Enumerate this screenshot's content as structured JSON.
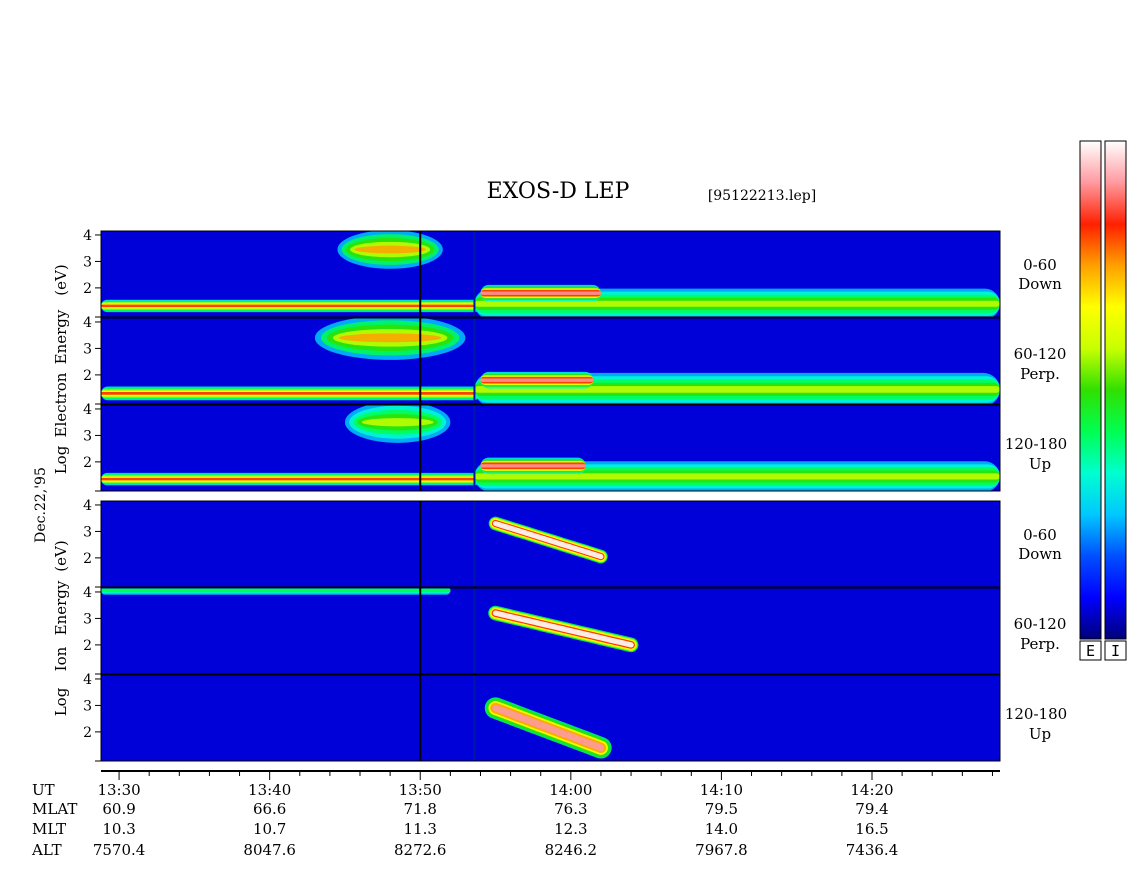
{
  "title": "EXOS-D LEP",
  "file_label": "[95122213.lep]",
  "date_label": "Dec.22,'95",
  "electron_axis_label": [
    "Log",
    "Electron",
    "Energy",
    "(eV)"
  ],
  "ion_axis_label": [
    "Log",
    "Ion",
    "Energy",
    "(eV)"
  ],
  "pitch_angle_labels": [
    [
      "0-60",
      "Down"
    ],
    [
      "60-120",
      "Perp."
    ],
    [
      "120-180",
      "Up"
    ]
  ],
  "colorbar_labels": [
    "E",
    "I"
  ],
  "colors": {
    "background": "#0000d8",
    "colorscale": [
      "#00007a",
      "#0000ff",
      "#0050ff",
      "#00c8ff",
      "#00ffd0",
      "#00ff50",
      "#30e000",
      "#c8ff00",
      "#ffff00",
      "#ffa000",
      "#ff2000",
      "#ff9aa0",
      "#ffffff"
    ]
  },
  "ephemeris": {
    "row_labels": [
      "UT",
      "MLAT",
      "MLT",
      "ALT"
    ],
    "columns": [
      {
        "UT": "13:30",
        "MLAT": "60.9",
        "MLT": "10.3",
        "ALT": "7570.4"
      },
      {
        "UT": "13:40",
        "MLAT": "66.6",
        "MLT": "10.7",
        "ALT": "8047.6"
      },
      {
        "UT": "13:50",
        "MLAT": "71.8",
        "MLT": "11.3",
        "ALT": "8272.6"
      },
      {
        "UT": "14:00",
        "MLAT": "76.3",
        "MLT": "12.3",
        "ALT": "8246.2"
      },
      {
        "UT": "14:10",
        "MLAT": "79.5",
        "MLT": "14.0",
        "ALT": "7967.8"
      },
      {
        "UT": "14:20",
        "MLAT": "79.4",
        "MLT": "16.5",
        "ALT": "7436.4"
      }
    ]
  },
  "chart_data": {
    "type": "heatmap",
    "x_axis": {
      "unit": "UT minutes after 13:00",
      "range": [
        28.8,
        88.5
      ],
      "major_ticks": [
        30,
        40,
        50,
        60,
        70,
        80
      ],
      "minor_step": 2
    },
    "y_axis": {
      "scale": "log10 energy (eV)",
      "range": [
        0.9,
        4.15
      ],
      "ticks": [
        2,
        3,
        4
      ]
    },
    "data_gap": {
      "start": 50.0,
      "end": 53.6
    },
    "panels": [
      {
        "species": "electron",
        "pitch": "0-60 Down",
        "features": [
          {
            "kind": "band",
            "x": [
              28.8,
              54.0
            ],
            "y": 1.32,
            "sigma": 0.09,
            "intensity": 0.82
          },
          {
            "kind": "blob",
            "x": [
              44.5,
              51.5
            ],
            "y": 3.45,
            "sigma": 0.28,
            "intensity": 0.72
          },
          {
            "kind": "band",
            "x": [
              53.6,
              88.5
            ],
            "y": 1.4,
            "sigma": 0.22,
            "intensity": 0.6
          },
          {
            "kind": "band",
            "x": [
              54.0,
              62.0
            ],
            "y": 1.8,
            "sigma": 0.12,
            "intensity": 0.95
          }
        ]
      },
      {
        "species": "electron",
        "pitch": "60-120 Perp.",
        "features": [
          {
            "kind": "band",
            "x": [
              28.8,
              54.0
            ],
            "y": 1.3,
            "sigma": 0.1,
            "intensity": 0.82
          },
          {
            "kind": "blob",
            "x": [
              43.0,
              53.0
            ],
            "y": 3.4,
            "sigma": 0.32,
            "intensity": 0.72
          },
          {
            "kind": "band",
            "x": [
              53.6,
              88.5
            ],
            "y": 1.45,
            "sigma": 0.24,
            "intensity": 0.6
          },
          {
            "kind": "band",
            "x": [
              54.0,
              61.5
            ],
            "y": 1.8,
            "sigma": 0.12,
            "intensity": 0.95
          }
        ]
      },
      {
        "species": "electron",
        "pitch": "120-180 Up",
        "features": [
          {
            "kind": "band",
            "x": [
              28.8,
              54.0
            ],
            "y": 1.35,
            "sigma": 0.09,
            "intensity": 0.8
          },
          {
            "kind": "blob",
            "x": [
              45.0,
              52.0
            ],
            "y": 3.5,
            "sigma": 0.3,
            "intensity": 0.62
          },
          {
            "kind": "band",
            "x": [
              53.6,
              88.5
            ],
            "y": 1.45,
            "sigma": 0.22,
            "intensity": 0.55
          },
          {
            "kind": "band",
            "x": [
              54.0,
              61.0
            ],
            "y": 1.85,
            "sigma": 0.12,
            "intensity": 0.95
          }
        ]
      },
      {
        "species": "ion",
        "pitch": "0-60 Down",
        "features": [
          {
            "kind": "dispersion",
            "x": [
              55.0,
              62.0
            ],
            "y": [
              3.3,
              2.05
            ],
            "width": 0.2,
            "intensity": 1.0
          }
        ]
      },
      {
        "species": "ion",
        "pitch": "60-120 Perp.",
        "features": [
          {
            "kind": "band",
            "x": [
              28.8,
              52.0
            ],
            "y": 4.05,
            "sigma": 0.06,
            "intensity": 0.45
          },
          {
            "kind": "dispersion",
            "x": [
              55.0,
              64.0
            ],
            "y": [
              3.2,
              2.0
            ],
            "width": 0.22,
            "intensity": 1.0
          }
        ]
      },
      {
        "species": "ion",
        "pitch": "120-180 Up",
        "features": [
          {
            "kind": "dispersion",
            "x": [
              55.0,
              62.0
            ],
            "y": [
              2.9,
              1.4
            ],
            "width": 0.35,
            "intensity": 0.9
          }
        ]
      }
    ]
  }
}
